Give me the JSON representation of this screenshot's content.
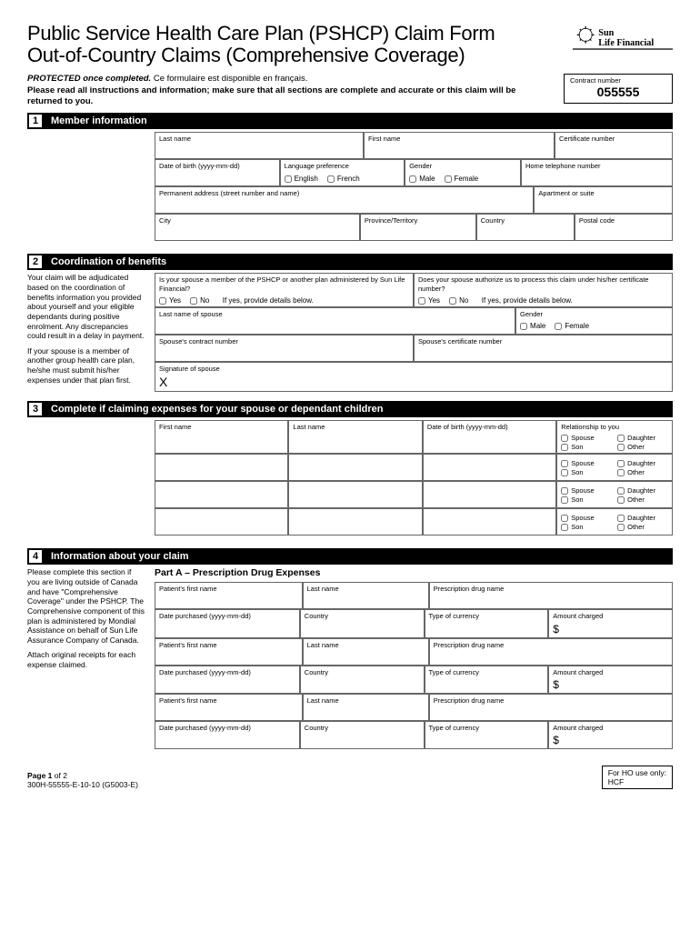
{
  "title_line1": "Public Service Health Care Plan (PSHCP) Claim Form",
  "title_line2": "Out-of-Country Claims (Comprehensive Coverage)",
  "logo_company": "Sun Life Financial",
  "instructions": {
    "protected": "PROTECTED once completed.",
    "french": "Ce formulaire est disponible en français.",
    "line2": "Please read all instructions and information; make sure that all sections are complete and accurate or this claim will be returned to you."
  },
  "contract": {
    "label": "Contract number",
    "value": "055555"
  },
  "sec1": {
    "num": "1",
    "title": "Member information",
    "last_name": "Last name",
    "first_name": "First name",
    "cert": "Certificate number",
    "dob": "Date of birth (yyyy-mm-dd)",
    "lang": "Language preference",
    "lang_en": "English",
    "lang_fr": "French",
    "gender": "Gender",
    "male": "Male",
    "female": "Female",
    "phone": "Home telephone number",
    "addr": "Permanent address (street number and name)",
    "apt": "Apartment or suite",
    "city": "City",
    "prov": "Province/Territory",
    "country": "Country",
    "postal": "Postal code"
  },
  "sec2": {
    "num": "2",
    "title": "Coordination of benefits",
    "side_p1": "Your claim will be adjudicated based on the coordination of benefits information you provided about yourself and your eligible dependants during positive enrolment. Any discrepancies could result in a delay in payment.",
    "side_p2": "If your spouse is a member of another group health care plan, he/she must submit his/her expenses under that plan first.",
    "q1": "Is your spouse a member of the PSHCP or another plan administered by Sun Life Financial?",
    "q2": "Does your spouse authorize us to process this claim under his/her certificate number?",
    "yes": "Yes",
    "no": "No",
    "ifyes": "If yes, provide details below.",
    "spouse_last": "Last name of spouse",
    "gender": "Gender",
    "male": "Male",
    "female": "Female",
    "spouse_contract": "Spouse's contract number",
    "spouse_cert": "Spouse's certificate number",
    "sig": "Signature of spouse"
  },
  "sec3": {
    "num": "3",
    "title": "Complete if claiming expenses for your spouse or dependant children",
    "first": "First name",
    "last": "Last name",
    "dob": "Date of birth (yyyy-mm-dd)",
    "rel": "Relationship to you",
    "spouse": "Spouse",
    "daughter": "Daughter",
    "son": "Son",
    "other": "Other"
  },
  "sec4": {
    "num": "4",
    "title": "Information about your claim",
    "side_p1": "Please complete this section if you are living outside of Canada and have \"Comprehensive Coverage\" under the PSHCP. The Comprehensive component of this plan is administered by Mondial Assistance on behalf of Sun Life Assurance Company of Canada.",
    "side_p2": "Attach original receipts for each expense claimed.",
    "part_a": "Part A – Prescription Drug Expenses",
    "pfirst": "Patient's first name",
    "plast": "Last name",
    "drug": "Prescription drug name",
    "date": "Date purchased (yyyy-mm-dd)",
    "country": "Country",
    "currency": "Type of currency",
    "amount": "Amount charged"
  },
  "footer": {
    "page": "Page 1 of 2",
    "formid": "300H-55555-E-10-10 (G5003-E)",
    "ho_label": "For HO use only:",
    "ho_val": "HCF"
  }
}
